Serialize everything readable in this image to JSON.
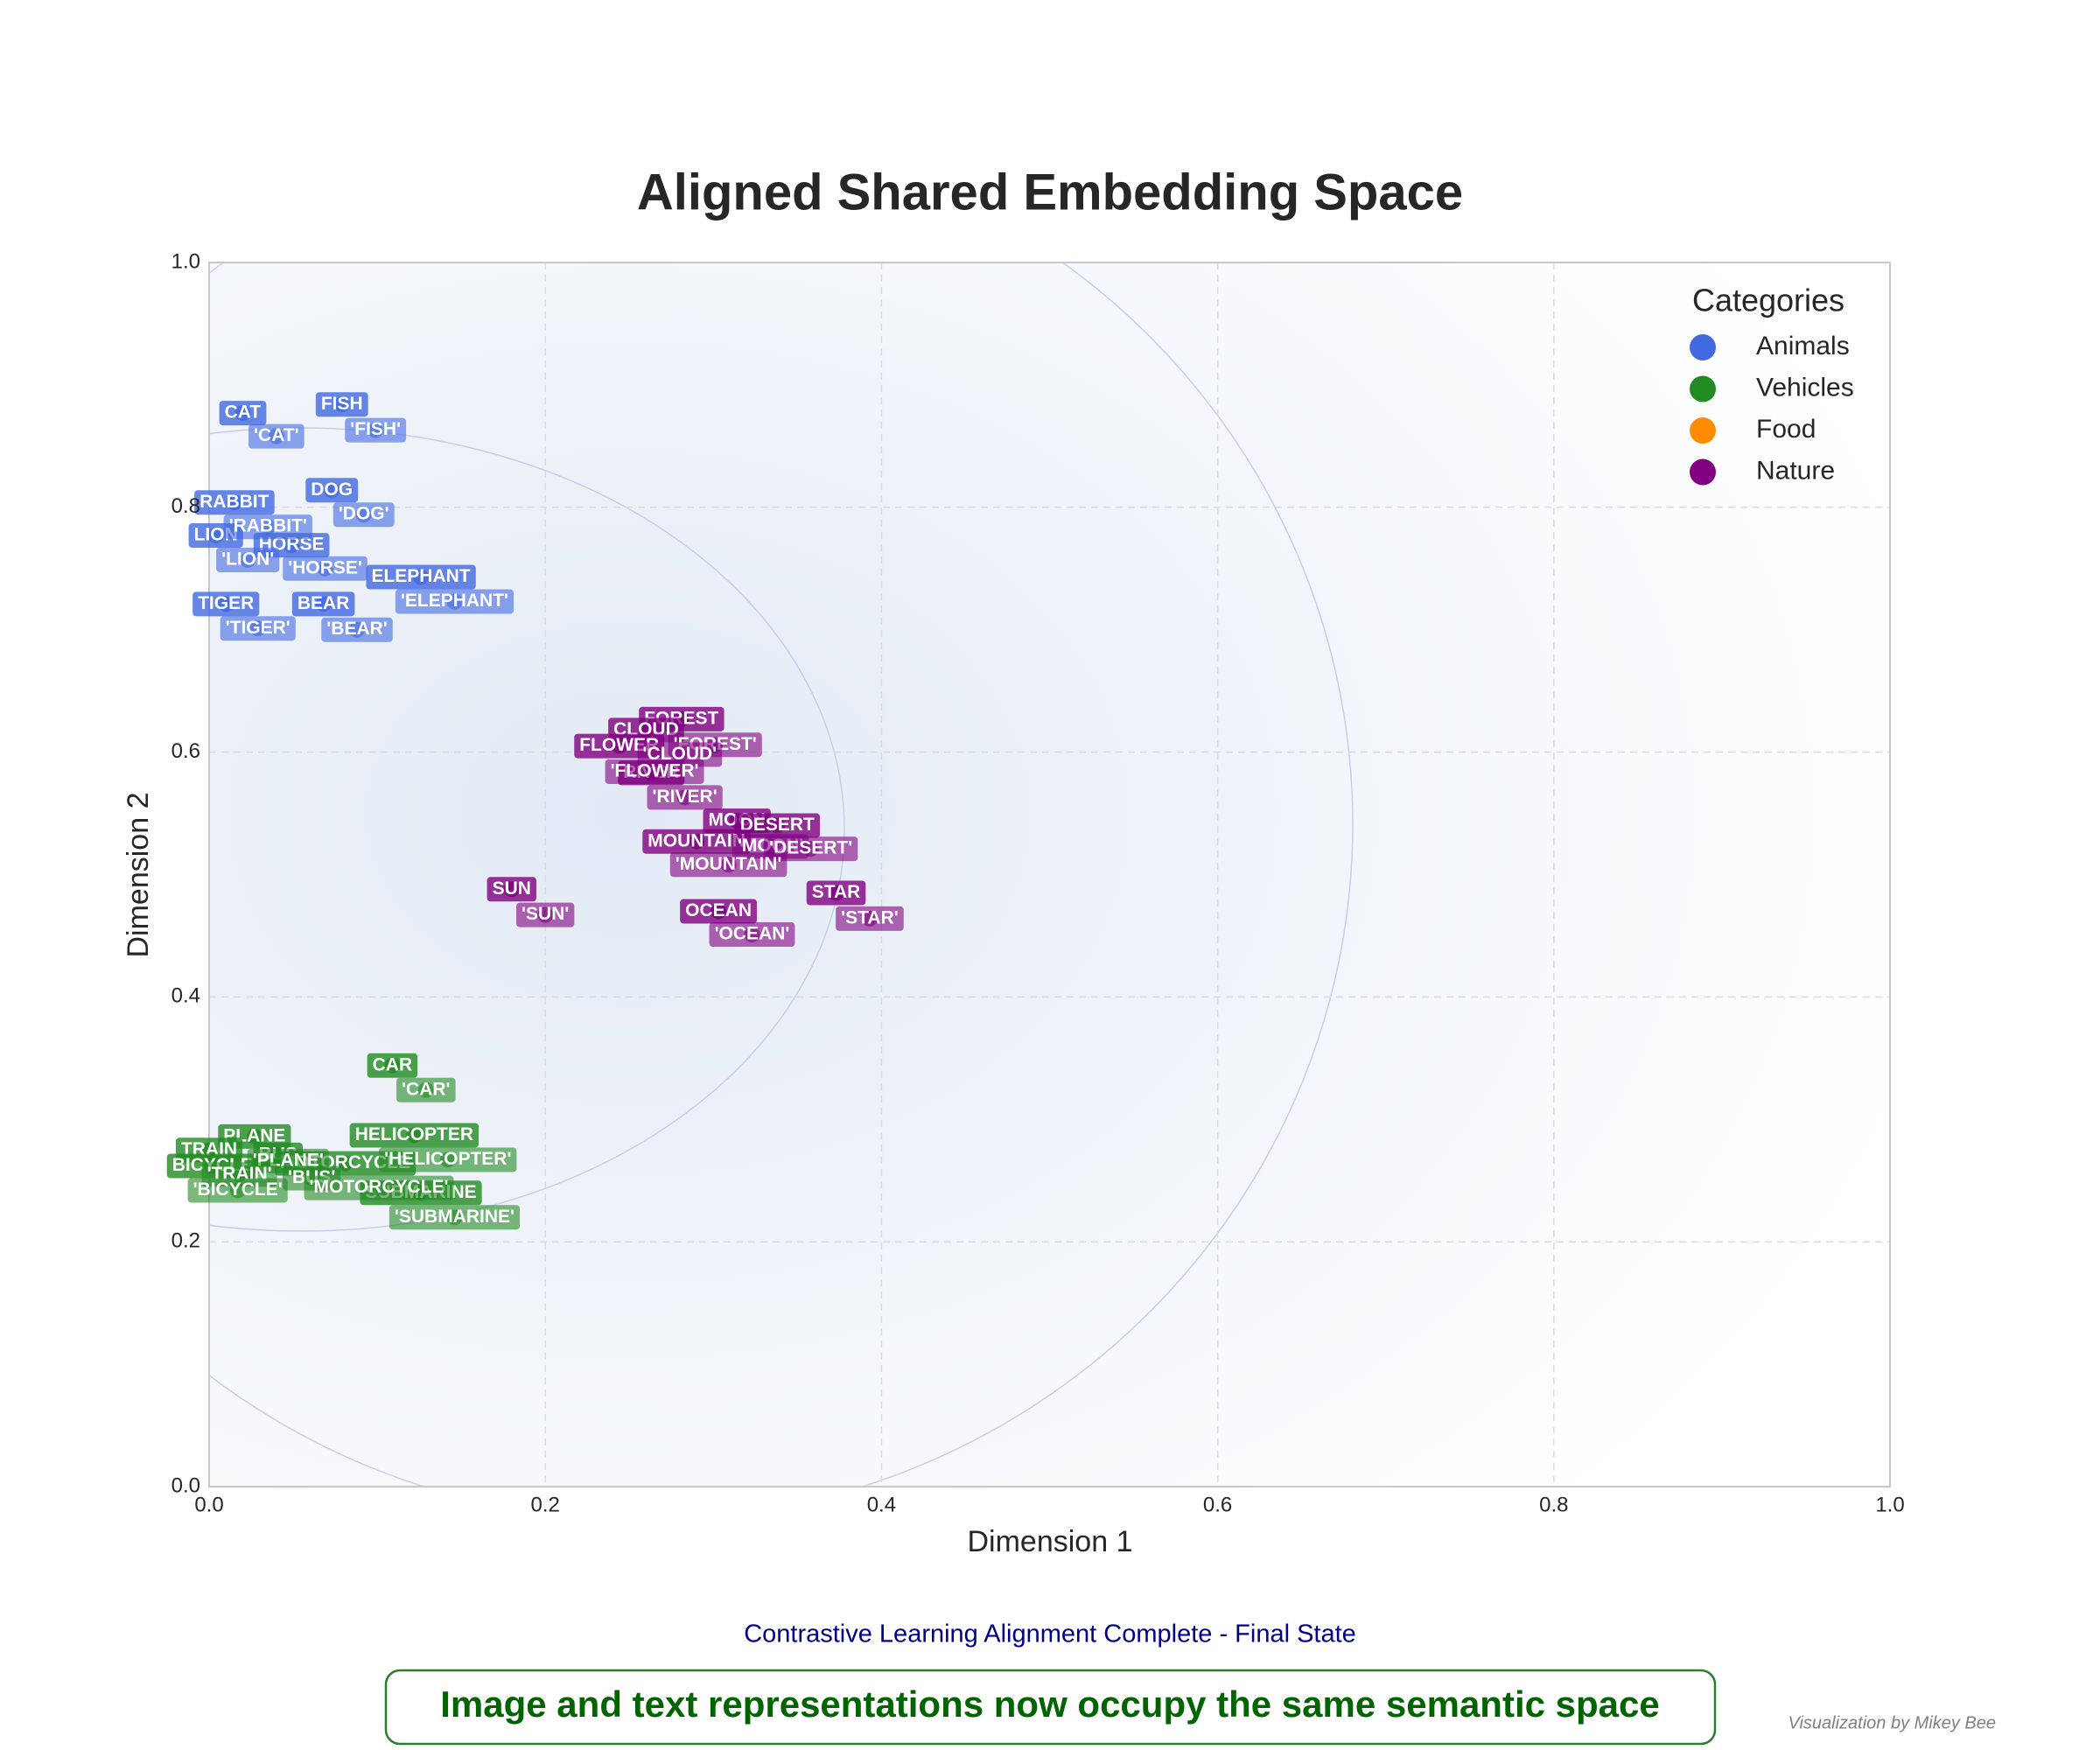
{
  "chart_data": {
    "type": "scatter",
    "title": "Aligned Shared Embedding Space",
    "xlabel": "Dimension 1",
    "ylabel": "Dimension 2",
    "xlim": [
      0,
      1
    ],
    "ylim": [
      0,
      1
    ],
    "xticks": [
      {
        "value": 0,
        "label": "0.0"
      },
      {
        "value": 0.2,
        "label": "0.2"
      },
      {
        "value": 0.4,
        "label": "0.4"
      },
      {
        "value": 0.6,
        "label": "0.6"
      },
      {
        "value": 0.8,
        "label": "0.8"
      },
      {
        "value": 1,
        "label": "1.0"
      }
    ],
    "yticks": [
      {
        "value": 0,
        "label": "0.0"
      },
      {
        "value": 0.2,
        "label": "0.2"
      },
      {
        "value": 0.4,
        "label": "0.4"
      },
      {
        "value": 0.6,
        "label": "0.6"
      },
      {
        "value": 0.8,
        "label": "0.8"
      },
      {
        "value": 1,
        "label": "1.0"
      }
    ],
    "grid": true,
    "legend_title": "Categories",
    "legend_loc": "upper right",
    "series": [
      {
        "name": "Animals",
        "color": "#4169e1",
        "image": {
          "labels": [
            "CAT",
            "FISH",
            "DOG",
            "RABBIT",
            "LION",
            "HORSE",
            "ELEPHANT",
            "TIGER",
            "BEAR"
          ],
          "x": [
            0.02,
            0.079,
            0.073,
            0.015,
            0.004,
            0.049,
            0.126,
            0.01,
            0.068
          ],
          "y": [
            0.877,
            0.884,
            0.814,
            0.804,
            0.777,
            0.769,
            0.743,
            0.721,
            0.721
          ]
        },
        "text": {
          "labels": [
            "'CAT'",
            "'FISH'",
            "'DOG'",
            "'RABBIT'",
            "'LION'",
            "'HORSE'",
            "'ELEPHANT'",
            "'TIGER'",
            "'BEAR'"
          ],
          "x": [
            0.04,
            0.099,
            0.092,
            0.035,
            0.023,
            0.069,
            0.146,
            0.029,
            0.088
          ],
          "y": [
            0.858,
            0.863,
            0.794,
            0.784,
            0.757,
            0.75,
            0.723,
            0.701,
            0.7
          ]
        }
      },
      {
        "name": "Vehicles",
        "color": "#228b22",
        "image": {
          "labels": [
            "CAR",
            "PLANE",
            "BUS",
            "HELICOPTER",
            "TRAIN",
            "MOTORCYCLE",
            "BICYCLE",
            "SUBMARINE"
          ],
          "x": [
            0.109,
            0.027,
            0.041,
            0.122,
            0.0,
            0.081,
            0.002,
            0.126
          ],
          "y": [
            0.344,
            0.286,
            0.271,
            0.287,
            0.275,
            0.264,
            0.262,
            0.24
          ]
        },
        "text": {
          "labels": [
            "'CAR'",
            "'PLANE'",
            "'BUS'",
            "'HELICOPTER'",
            "'TRAIN'",
            "'MOTORCYCLE'",
            "'BICYCLE'",
            "'SUBMARINE'"
          ],
          "x": [
            0.129,
            0.047,
            0.061,
            0.142,
            0.018,
            0.101,
            0.017,
            0.146
          ],
          "y": [
            0.324,
            0.266,
            0.252,
            0.267,
            0.255,
            0.244,
            0.242,
            0.22
          ]
        }
      },
      {
        "name": "Food",
        "color": "#ff8c00",
        "image": {
          "labels": [],
          "x": [],
          "y": []
        },
        "text": {
          "labels": [],
          "x": [],
          "y": []
        }
      },
      {
        "name": "Nature",
        "color": "#800080",
        "image": {
          "labels": [
            "FOREST",
            "CLOUD",
            "FLOWER",
            "RIVER",
            "MOON",
            "DESERT",
            "MOUNTAIN",
            "SUN",
            "OCEAN",
            "STAR"
          ],
          "x": [
            0.281,
            0.26,
            0.244,
            0.263,
            0.314,
            0.338,
            0.29,
            0.18,
            0.303,
            0.373
          ],
          "y": [
            0.627,
            0.618,
            0.605,
            0.583,
            0.544,
            0.54,
            0.527,
            0.488,
            0.47,
            0.485
          ]
        },
        "text": {
          "labels": [
            "'FOREST'",
            "'CLOUD'",
            "'FLOWER'",
            "'RIVER'",
            "'MOON'",
            "'DESERT'",
            "'MOUNTAIN'",
            "'SUN'",
            "'OCEAN'",
            "'STAR'"
          ],
          "x": [
            0.301,
            0.28,
            0.265,
            0.283,
            0.334,
            0.358,
            0.309,
            0.2,
            0.323,
            0.393
          ],
          "y": [
            0.606,
            0.598,
            0.584,
            0.563,
            0.523,
            0.521,
            0.508,
            0.467,
            0.451,
            0.464
          ]
        }
      }
    ],
    "subtitle": "Contrastive Learning Alignment Complete - Final State",
    "annotation": "Image and text representations now occupy the same semantic space",
    "credit": "Visualization by Mikey Bee"
  }
}
